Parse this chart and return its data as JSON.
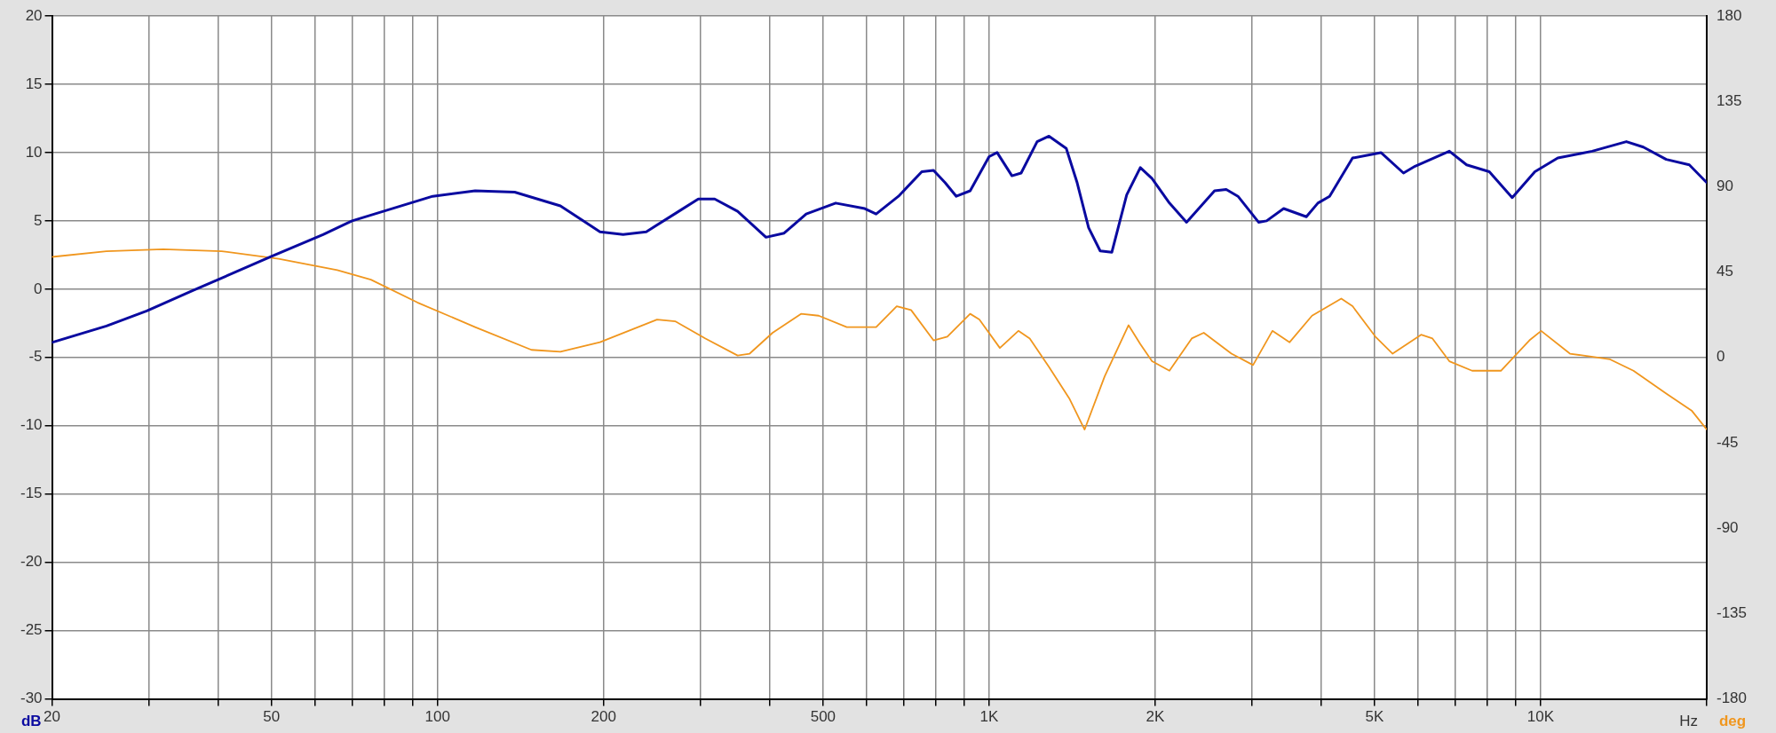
{
  "chart_data": {
    "type": "line",
    "xlabel": "Hz",
    "ylabel": "dB",
    "y2label": "deg",
    "log": "x",
    "grid": true,
    "legend": false,
    "marker": "none",
    "line_style": "solid",
    "xlim": [
      20,
      20000
    ],
    "xticks": [
      20,
      {
        "value": 30,
        "label": null
      },
      {
        "value": 40,
        "label": null
      },
      50,
      {
        "value": 60,
        "label": null
      },
      {
        "value": 70,
        "label": null
      },
      {
        "value": 80,
        "label": null
      },
      {
        "value": 90,
        "label": null
      },
      100,
      200,
      {
        "value": 300,
        "label": null
      },
      {
        "value": 400,
        "label": null
      },
      500,
      {
        "value": 600,
        "label": null
      },
      {
        "value": 700,
        "label": null
      },
      {
        "value": 800,
        "label": null
      },
      {
        "value": 900,
        "label": null
      },
      {
        "value": 1000,
        "label": "1K"
      },
      {
        "value": 2000,
        "label": "2K"
      },
      {
        "value": 3000,
        "label": null
      },
      {
        "value": 4000,
        "label": null
      },
      {
        "value": 5000,
        "label": "5K"
      },
      {
        "value": 6000,
        "label": null
      },
      {
        "value": 7000,
        "label": null
      },
      {
        "value": 8000,
        "label": null
      },
      {
        "value": 9000,
        "label": null
      },
      {
        "value": 10000,
        "label": "10K"
      },
      {
        "value": 20000,
        "label": null
      }
    ],
    "ylim": [
      -30,
      20
    ],
    "yticks": [
      -30,
      -25,
      -20,
      -15,
      -10,
      -5,
      0,
      5,
      10,
      15,
      20
    ],
    "y2lim": [
      -180,
      180
    ],
    "y2ticks": [
      -180,
      -135,
      -90,
      -45,
      0,
      45,
      90,
      135,
      180
    ],
    "series": [
      {
        "color": "#0a0aa0",
        "x": [
          20,
          25.1,
          29.7,
          36,
          40,
          50,
          62,
          70,
          98,
          117,
          138,
          167,
          197,
          217,
          239,
          297,
          318,
          350,
          394,
          425,
          466,
          527,
          595,
          624,
          685,
          755,
          793,
          832,
          872,
          924,
          1000,
          1034,
          1100,
          1143,
          1222,
          1284,
          1380,
          1444,
          1515,
          1590,
          1669,
          1776,
          1880,
          1974,
          2123,
          2280,
          2563,
          2691,
          2826,
          3080,
          3185,
          3420,
          3760,
          3945,
          4143,
          4560,
          5133,
          5640,
          5920,
          6830,
          7340,
          8070,
          8880,
          9760,
          10740,
          12400,
          14300,
          15350,
          16890,
          18600,
          20000
        ],
        "values": [
          -3.9,
          -2.7,
          -1.6,
          -0.1,
          0.7,
          2.4,
          4.0,
          5.0,
          6.8,
          7.2,
          7.1,
          6.1,
          4.2,
          4.0,
          4.2,
          6.6,
          6.6,
          5.7,
          3.8,
          4.1,
          5.5,
          6.3,
          5.9,
          5.5,
          6.8,
          8.6,
          8.7,
          7.8,
          6.8,
          7.2,
          9.7,
          10.0,
          8.3,
          8.5,
          10.8,
          11.2,
          10.3,
          7.8,
          4.5,
          2.8,
          2.7,
          6.9,
          8.9,
          8.1,
          6.3,
          4.9,
          7.2,
          7.3,
          6.8,
          4.9,
          5.0,
          5.9,
          5.3,
          6.3,
          6.8,
          9.6,
          10.0,
          8.5,
          9.0,
          10.1,
          9.1,
          8.6,
          6.7,
          8.6,
          9.6,
          10.1,
          10.8,
          10.4,
          9.5,
          9.1,
          7.8
        ]
      },
      {
        "color": "#f0961e",
        "axis": "y2",
        "x": [
          20,
          25.1,
          31.8,
          40.6,
          51.5,
          65.8,
          75.7,
          91.9,
          117,
          148,
          167,
          197,
          250,
          270,
          306,
          350,
          368,
          405,
          456,
          491,
          552,
          624,
          680,
          722,
          793,
          840,
          924,
          960,
          1046,
          1130,
          1185,
          1284,
          1400,
          1490,
          1620,
          1790,
          1880,
          1974,
          2123,
          2330,
          2450,
          2750,
          3010,
          3263,
          3506,
          3850,
          4350,
          4560,
          5015,
          5390,
          6070,
          6365,
          6830,
          7510,
          8470,
          9540,
          10020,
          11300,
          13360,
          14730,
          16890,
          18780,
          20000
        ],
        "values": [
          53,
          56,
          57,
          56,
          52,
          46,
          41,
          29,
          16,
          4,
          3,
          8,
          20,
          19,
          10,
          1,
          2,
          13,
          23,
          22,
          16,
          16,
          27,
          25,
          9,
          11,
          23,
          20,
          5,
          14,
          10,
          -5,
          -22,
          -38,
          -10,
          17,
          7,
          -2,
          -7,
          10,
          13,
          2,
          -4,
          14,
          8,
          22,
          31,
          27,
          11,
          2,
          12,
          10,
          -2,
          -7,
          -7,
          9,
          14,
          2,
          -1,
          -7,
          -19,
          -28,
          -38
        ]
      }
    ]
  }
}
